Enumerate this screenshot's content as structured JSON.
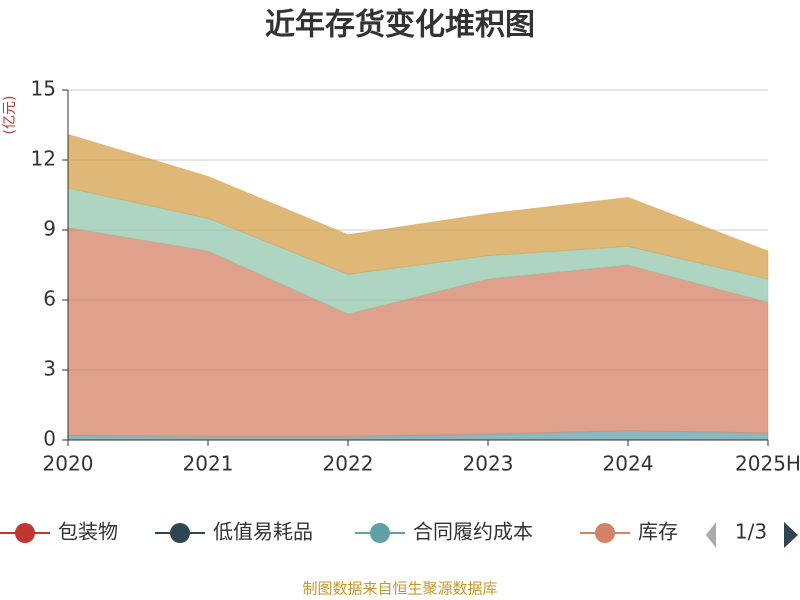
{
  "chart_data": {
    "type": "stacked_area",
    "title": "近年存货变化堆积图",
    "y_label": "(亿元)",
    "categories": [
      "2020",
      "2021",
      "2022",
      "2023",
      "2024",
      "2025H"
    ],
    "ylim": [
      0,
      15
    ],
    "yticks": [
      0,
      3,
      6,
      9,
      12,
      15
    ],
    "grid": true,
    "series": [
      {
        "name": "包装物",
        "color": "#c23531",
        "values": [
          0,
          0,
          0,
          0,
          0,
          0
        ]
      },
      {
        "name": "低值易耗品",
        "color": "#2f4554",
        "values": [
          0,
          0,
          0,
          0,
          0,
          0
        ]
      },
      {
        "name": "合同履约成本",
        "color": "#61a0a8",
        "values": [
          0.2,
          0.15,
          0.15,
          0.25,
          0.4,
          0.3
        ]
      },
      {
        "name": "库存",
        "color": "#d48265",
        "values": [
          8.9,
          7.95,
          5.25,
          6.65,
          7.1,
          5.6
        ]
      },
      {
        "color": "#91c7ae",
        "values": [
          1.7,
          1.4,
          1.7,
          1.0,
          0.8,
          1.0
        ]
      },
      {
        "color": "#d4a04a",
        "values": [
          2.3,
          1.8,
          1.7,
          1.8,
          2.1,
          1.2
        ]
      }
    ],
    "legend_page": "1/3",
    "source": "制图数据来自恒生聚源数据库"
  }
}
